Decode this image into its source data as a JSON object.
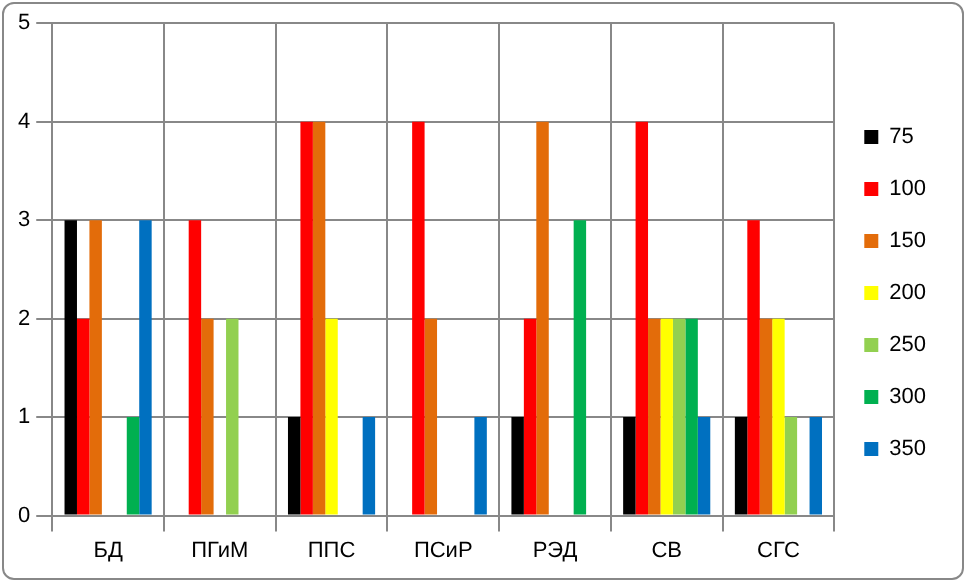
{
  "chart_data": {
    "type": "bar",
    "categories": [
      "БД",
      "ПГиМ",
      "ППС",
      "ПСиР",
      "РЭД",
      "СВ",
      "СГС"
    ],
    "series": [
      {
        "name": "75",
        "color": "#000000",
        "values": [
          3,
          0,
          1,
          0,
          1,
          1,
          1
        ]
      },
      {
        "name": "100",
        "color": "#ff0000",
        "values": [
          2,
          3,
          4,
          4,
          2,
          4,
          3
        ]
      },
      {
        "name": "150",
        "color": "#e36c0a",
        "values": [
          3,
          2,
          4,
          2,
          4,
          2,
          2
        ]
      },
      {
        "name": "200",
        "color": "#ffff00",
        "values": [
          0,
          0,
          2,
          0,
          0,
          2,
          2
        ]
      },
      {
        "name": "250",
        "color": "#92d050",
        "values": [
          0,
          2,
          0,
          0,
          0,
          2,
          1
        ]
      },
      {
        "name": "300",
        "color": "#00b050",
        "values": [
          1,
          0,
          0,
          0,
          3,
          2,
          0
        ]
      },
      {
        "name": "350",
        "color": "#0070c0",
        "values": [
          3,
          0,
          1,
          1,
          0,
          1,
          1
        ]
      }
    ],
    "ylim": [
      0,
      5
    ],
    "yticks": [
      0,
      1,
      2,
      3,
      4,
      5
    ],
    "grid": true,
    "legend": "right"
  }
}
